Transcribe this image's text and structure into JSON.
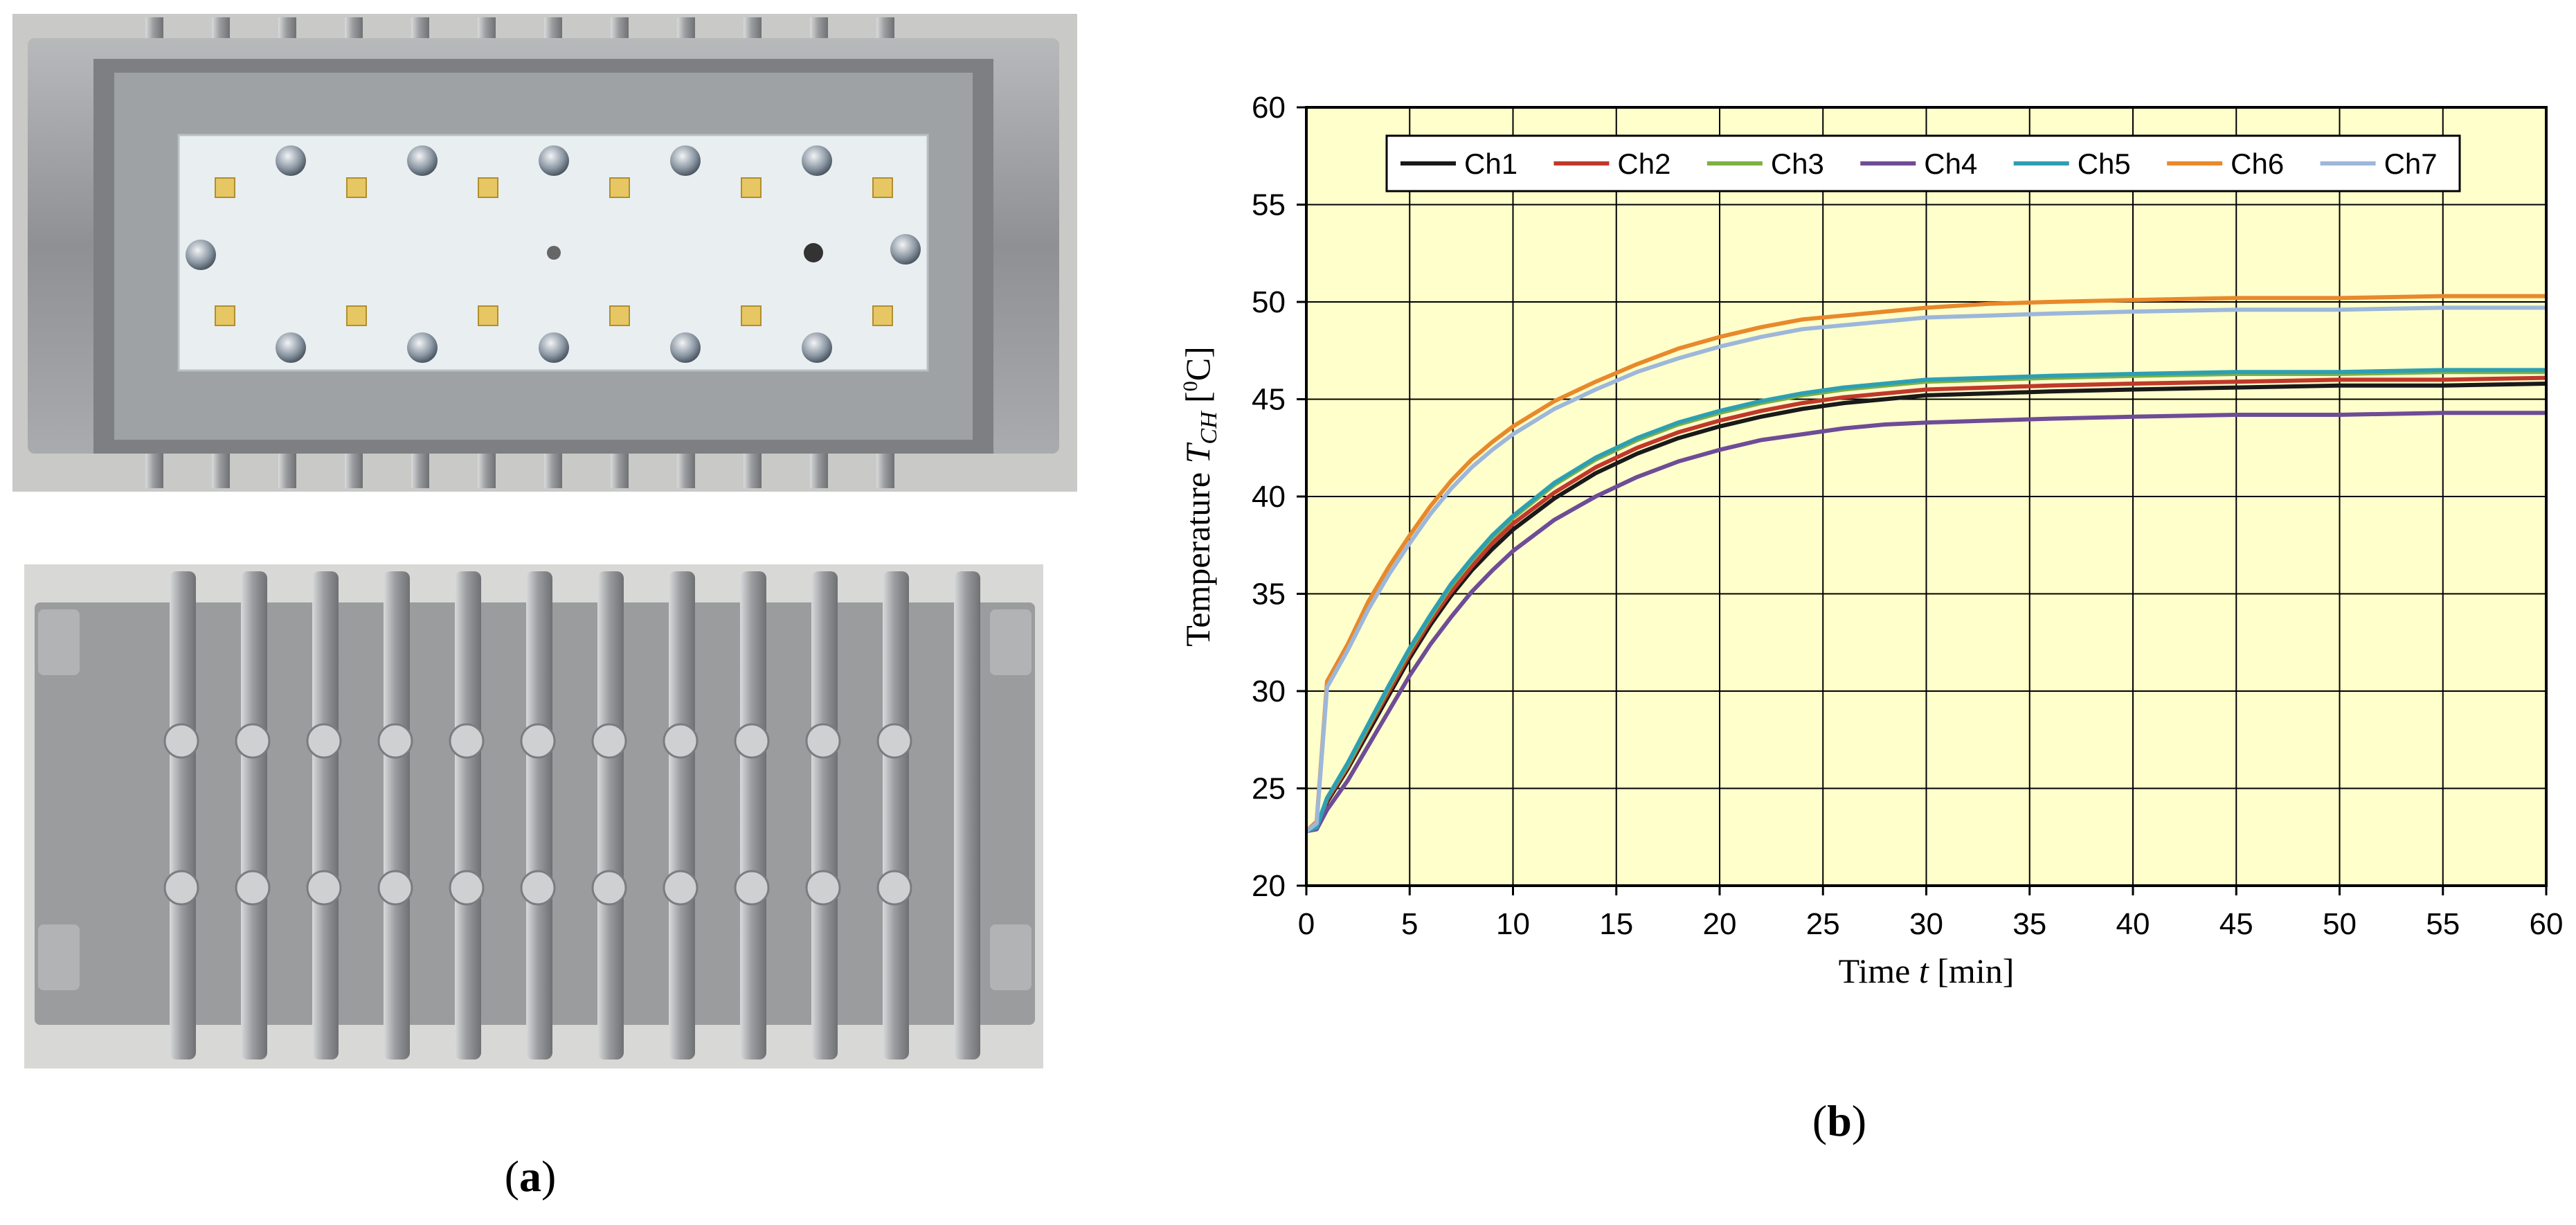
{
  "panel_a": {
    "caption_prefix": "(",
    "caption_letter": "a",
    "caption_suffix": ")"
  },
  "panel_b": {
    "caption_prefix": "(",
    "caption_letter": "b",
    "caption_suffix": ")"
  },
  "colors": {
    "plot_background": "#ffffcc",
    "Ch1": "#1a1a1a",
    "Ch2": "#c0392b",
    "Ch3": "#7fb041",
    "Ch4": "#6e4c96",
    "Ch5": "#2e9fb3",
    "Ch6": "#e8892b",
    "Ch7": "#9db7da"
  },
  "chart_data": {
    "type": "line",
    "xlabel_pre": "Time ",
    "xlabel_var": "t",
    "xlabel_post": " [min]",
    "ylabel_pre": "Temperature ",
    "ylabel_var": "T",
    "ylabel_sub": "CH",
    "ylabel_post": " [",
    "ylabel_sup": "0",
    "ylabel_end": "C]",
    "xlim": [
      0,
      60
    ],
    "ylim": [
      20,
      60
    ],
    "xticks": [
      0,
      5,
      10,
      15,
      20,
      25,
      30,
      35,
      40,
      45,
      50,
      55,
      60
    ],
    "yticks": [
      20,
      25,
      30,
      35,
      40,
      45,
      50,
      55,
      60
    ],
    "grid": true,
    "legend_position": "top",
    "x": [
      0,
      0.5,
      1,
      2,
      3,
      4,
      5,
      6,
      7,
      8,
      9,
      10,
      12,
      14,
      16,
      18,
      20,
      22,
      24,
      26,
      28,
      30,
      33,
      36,
      40,
      45,
      50,
      55,
      60
    ],
    "series": [
      {
        "name": "Ch1",
        "values": [
          22.8,
          23.0,
          24.3,
          26.0,
          27.9,
          29.8,
          31.7,
          33.4,
          34.9,
          36.2,
          37.3,
          38.3,
          39.9,
          41.2,
          42.2,
          43.0,
          43.6,
          44.1,
          44.5,
          44.8,
          45.0,
          45.2,
          45.3,
          45.4,
          45.5,
          45.6,
          45.7,
          45.7,
          45.8
        ]
      },
      {
        "name": "Ch2",
        "values": [
          22.8,
          23.0,
          24.4,
          26.1,
          28.1,
          30.0,
          31.9,
          33.6,
          35.1,
          36.4,
          37.6,
          38.6,
          40.2,
          41.5,
          42.5,
          43.3,
          43.9,
          44.4,
          44.8,
          45.1,
          45.3,
          45.5,
          45.6,
          45.7,
          45.8,
          45.9,
          46.0,
          46.0,
          46.1
        ]
      },
      {
        "name": "Ch3",
        "values": [
          22.8,
          23.0,
          24.5,
          26.2,
          28.2,
          30.2,
          32.1,
          33.8,
          35.4,
          36.7,
          37.9,
          38.9,
          40.6,
          41.9,
          42.9,
          43.7,
          44.3,
          44.8,
          45.2,
          45.5,
          45.7,
          45.9,
          46.0,
          46.1,
          46.2,
          46.3,
          46.3,
          46.4,
          46.4
        ]
      },
      {
        "name": "Ch4",
        "values": [
          22.8,
          22.9,
          23.9,
          25.4,
          27.2,
          29.0,
          30.8,
          32.4,
          33.8,
          35.1,
          36.2,
          37.2,
          38.8,
          40.0,
          41.0,
          41.8,
          42.4,
          42.9,
          43.2,
          43.5,
          43.7,
          43.8,
          43.9,
          44.0,
          44.1,
          44.2,
          44.2,
          44.3,
          44.3
        ]
      },
      {
        "name": "Ch5",
        "values": [
          22.8,
          23.0,
          24.5,
          26.3,
          28.3,
          30.3,
          32.2,
          33.9,
          35.5,
          36.8,
          38.0,
          39.0,
          40.7,
          42.0,
          43.0,
          43.8,
          44.4,
          44.9,
          45.3,
          45.6,
          45.8,
          46.0,
          46.1,
          46.2,
          46.3,
          46.4,
          46.4,
          46.5,
          46.5
        ]
      },
      {
        "name": "Ch6",
        "values": [
          22.8,
          23.3,
          30.5,
          32.4,
          34.6,
          36.4,
          38.0,
          39.5,
          40.8,
          41.9,
          42.8,
          43.6,
          44.9,
          45.9,
          46.8,
          47.6,
          48.2,
          48.7,
          49.1,
          49.3,
          49.5,
          49.7,
          49.9,
          50.0,
          50.1,
          50.2,
          50.2,
          50.3,
          50.3
        ]
      },
      {
        "name": "Ch7",
        "values": [
          22.8,
          23.2,
          30.2,
          32.1,
          34.2,
          36.0,
          37.6,
          39.1,
          40.4,
          41.5,
          42.4,
          43.2,
          44.5,
          45.5,
          46.4,
          47.1,
          47.7,
          48.2,
          48.6,
          48.8,
          49.0,
          49.2,
          49.3,
          49.4,
          49.5,
          49.6,
          49.6,
          49.7,
          49.7
        ]
      }
    ]
  }
}
